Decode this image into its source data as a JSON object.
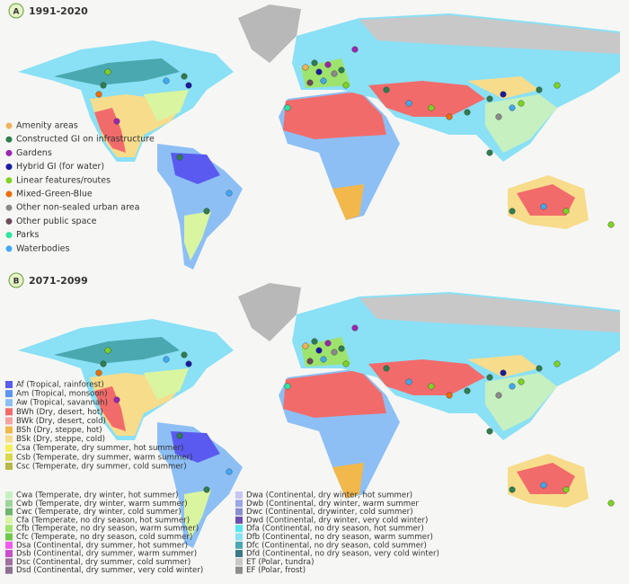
{
  "panels": [
    {
      "letter": "A",
      "period": "1991-2020"
    },
    {
      "letter": "B",
      "period": "2071-2099"
    }
  ],
  "intervention_legend": [
    {
      "label": "Amenity areas",
      "color": "#f2b35e"
    },
    {
      "label": "Constructed GI on infrastructure",
      "color": "#2e7d4f"
    },
    {
      "label": "Gardens",
      "color": "#9c27b0"
    },
    {
      "label": "Hybrid GI (for water)",
      "color": "#1a1aa0"
    },
    {
      "label": "Linear features/routes",
      "color": "#7ed321"
    },
    {
      "label": "Mixed-Green-Blue",
      "color": "#ef6c00"
    },
    {
      "label": "Other non-sealed urban area",
      "color": "#8a8a8a"
    },
    {
      "label": "Other public space",
      "color": "#6d4c5a"
    },
    {
      "label": "Parks",
      "color": "#2ee59d"
    },
    {
      "label": "Waterbodies",
      "color": "#3fa9f5"
    }
  ],
  "climate_legend": [
    {
      "label": "Af (Tropical, rainforest)",
      "color": "#5a5af0"
    },
    {
      "label": "Am (Tropical, monsoon)",
      "color": "#5f95f0"
    },
    {
      "label": "Aw (Tropical, savannah)",
      "color": "#8dbff5"
    },
    {
      "label": "BWh (Dry, desert, hot)",
      "color": "#f26b6b"
    },
    {
      "label": "BWk (Dry, desert, cold)",
      "color": "#f5a3a3"
    },
    {
      "label": "BSh (Dry, steppe, hot)",
      "color": "#f2b84b"
    },
    {
      "label": "BSk (Dry, steppe, cold)",
      "color": "#f7dc8c"
    },
    {
      "label": "Csa (Temperate, dry summer, hot summer)",
      "color": "#f5f05a"
    },
    {
      "label": "Csb (Temperate, dry summer, warm summer)",
      "color": "#d8d84a"
    },
    {
      "label": "Csc (Temperate, dry summer, cold summer)",
      "color": "#b8b84a"
    },
    {
      "label": "Cwa (Temperate, dry winter, hot summer)",
      "color": "#c6f0c0"
    },
    {
      "label": "Cwb (Temperate, dry winter, warm summer)",
      "color": "#9ed49a"
    },
    {
      "label": "Cwc (Temperate, dry winter, cold summer)",
      "color": "#6fb56e"
    },
    {
      "label": "Cfa (Temperate, no dry season, hot summer)",
      "color": "#d9f5a0"
    },
    {
      "label": "Cfb (Temperate, no dry season, warm summer)",
      "color": "#9ee36e"
    },
    {
      "label": "Cfc (Temperate, no dry season, cold summer)",
      "color": "#6ec94a"
    },
    {
      "label": "Dsa (Continental, dry summer, hot summer)",
      "color": "#f05af0"
    },
    {
      "label": "Dsb (Continental, dry summer, warm summer)",
      "color": "#c84fc8"
    },
    {
      "label": "Dsc (Continental, dry summer, cold summer)",
      "color": "#a070a0"
    },
    {
      "label": "Dsd (Continental, dry summer, very cold winter)",
      "color": "#907090"
    },
    {
      "label": "Dwa (Continental, dry winter, hot summer)",
      "color": "#c6c6f5"
    },
    {
      "label": "Dwb (Continental, dry winter, warm summer",
      "color": "#9aa6e6"
    },
    {
      "label": "Dwc (Continental, drywinter, cold summer)",
      "color": "#8a8ed0"
    },
    {
      "label": "Dwd (Continental, dry winter, very cold winter)",
      "color": "#6a4fb0"
    },
    {
      "label": "Dfa (Continental, no dry season, hot summer)",
      "color": "#5ae6f0"
    },
    {
      "label": "Dfb (Continental, no dry season, warm summer)",
      "color": "#8ae0f5"
    },
    {
      "label": "Dfc (Continental, no dry season, cold summer)",
      "color": "#4aa8b0"
    },
    {
      "label": "Dfd (Continental, no dry season, very cold winter)",
      "color": "#3a7a86"
    },
    {
      "label": "ET (Polar, tundra)",
      "color": "#c8c8c8"
    },
    {
      "label": "EF (Polar, frost)",
      "color": "#8e8e8e"
    }
  ]
}
